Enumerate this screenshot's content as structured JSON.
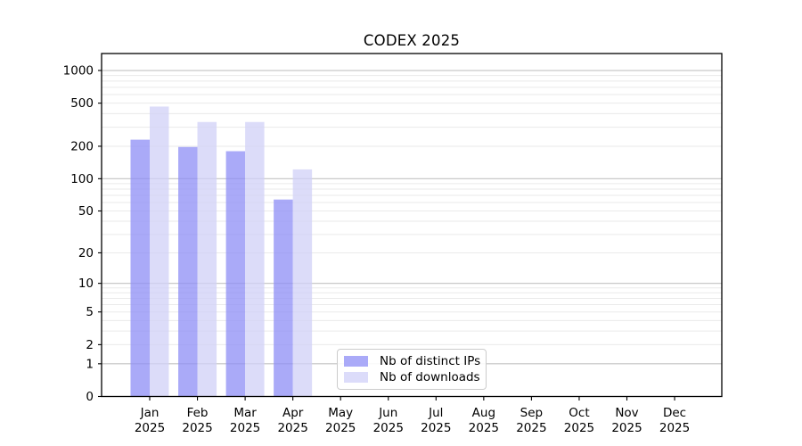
{
  "title": "CODEX 2025",
  "chart_data": {
    "type": "bar",
    "title": "CODEX 2025",
    "categories": [
      "Jan 2025",
      "Feb 2025",
      "Mar 2025",
      "Apr 2025",
      "May 2025",
      "Jun 2025",
      "Jul 2025",
      "Aug 2025",
      "Sep 2025",
      "Oct 2025",
      "Nov 2025",
      "Dec 2025"
    ],
    "series": [
      {
        "name": "Nb of distinct IPs",
        "color": "#aaaaf8",
        "fill_rgba": "rgba(142,142,246,0.75)",
        "values": [
          230,
          197,
          180,
          64,
          0,
          0,
          0,
          0,
          0,
          0,
          0,
          0
        ]
      },
      {
        "name": "Nb of downloads",
        "color": "#dcdcfa",
        "fill_rgba": "rgba(208,208,247,0.75)",
        "values": [
          465,
          335,
          335,
          122,
          0,
          0,
          0,
          0,
          0,
          0,
          0,
          0
        ]
      }
    ],
    "xlabel": "",
    "ylabel": "",
    "yscale": "symlog ln(1+v)",
    "ylim": [
      0,
      1450
    ],
    "yticks": [
      0,
      1,
      2,
      5,
      10,
      20,
      50,
      100,
      200,
      500,
      1000
    ],
    "ytick_labels": [
      "0",
      "1",
      "2",
      "5",
      "10",
      "20",
      "50",
      "100",
      "200",
      "500",
      "1000"
    ],
    "grid": {
      "major_values": [
        1,
        10,
        100,
        1000
      ],
      "minor_subs": [
        2,
        3,
        4,
        5,
        6,
        7,
        8,
        9
      ],
      "major_color": "#c3c3c3",
      "minor_color": "#eaeaea"
    },
    "legend_position": "lower center"
  },
  "colors": {
    "background": "#ffffff",
    "spine": "#000000",
    "tick_text": "#000000"
  }
}
